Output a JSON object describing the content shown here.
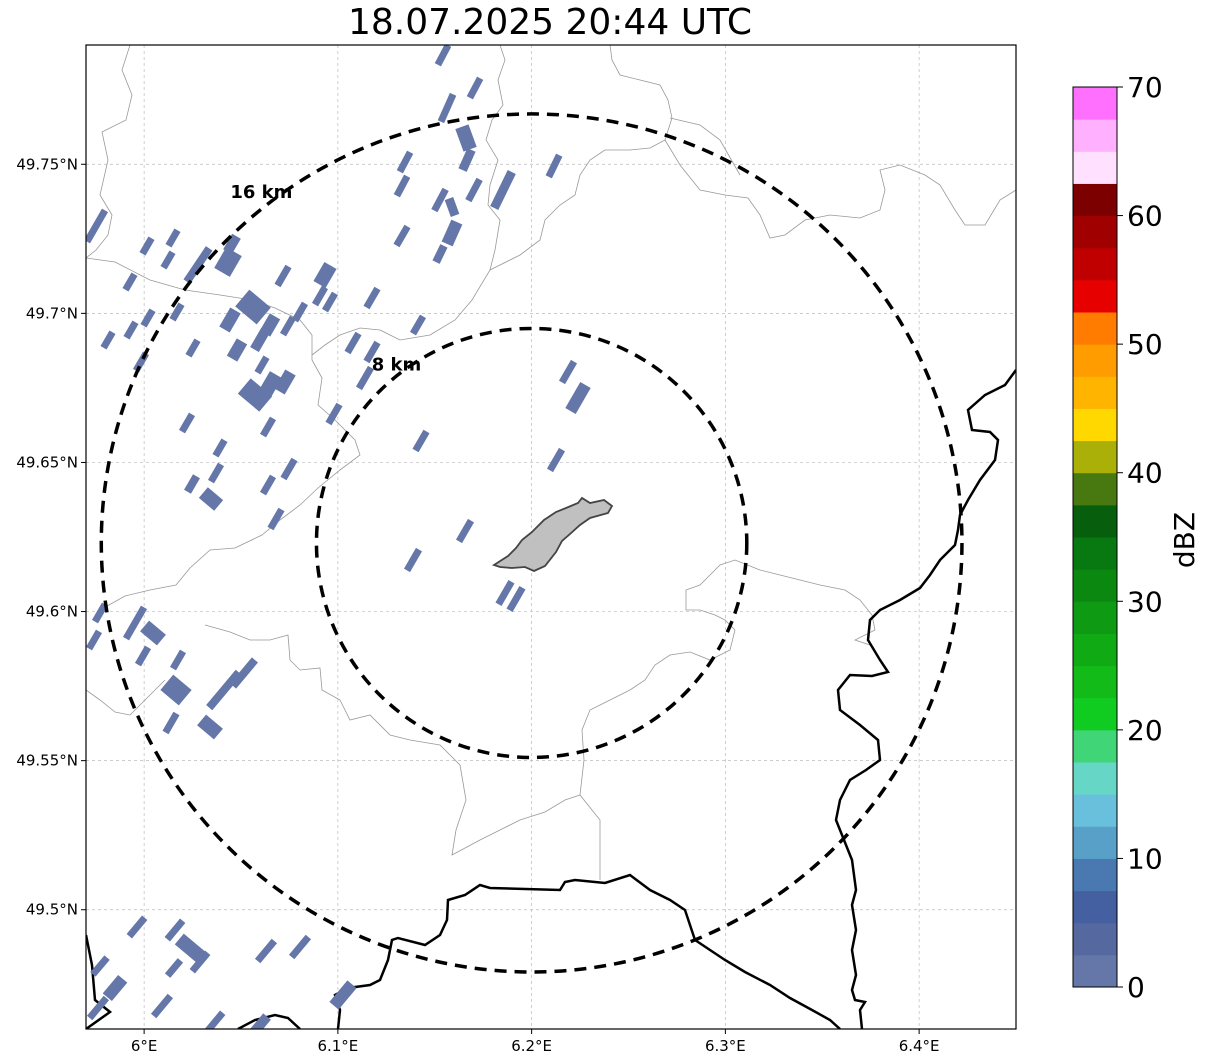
{
  "title": "18.07.2025 20:44 UTC",
  "map": {
    "lon_range": [
      5.97,
      6.45
    ],
    "lat_range": [
      49.46,
      49.79
    ],
    "x_ticks": [
      {
        "value": 6.0,
        "label": "6°E"
      },
      {
        "value": 6.1,
        "label": "6.1°E"
      },
      {
        "value": 6.2,
        "label": "6.2°E"
      },
      {
        "value": 6.3,
        "label": "6.3°E"
      },
      {
        "value": 6.4,
        "label": "6.4°E"
      }
    ],
    "y_ticks": [
      {
        "value": 49.5,
        "label": "49.5°N"
      },
      {
        "value": 49.55,
        "label": "49.55°N"
      },
      {
        "value": 49.6,
        "label": "49.6°N"
      },
      {
        "value": 49.65,
        "label": "49.65°N"
      },
      {
        "value": 49.7,
        "label": "49.7°N"
      },
      {
        "value": 49.75,
        "label": "49.75°N"
      }
    ],
    "grid": true,
    "center": {
      "lon": 6.2,
      "lat": 49.623
    },
    "rings": [
      {
        "radius_km": 8,
        "label": "8 km"
      },
      {
        "radius_km": 16,
        "label": "16 km"
      }
    ],
    "echo_color": "#6577a8"
  },
  "colorbar": {
    "label": "dBZ",
    "tick_labels": [
      "0",
      "10",
      "20",
      "30",
      "40",
      "50",
      "60",
      "70"
    ],
    "min": 0,
    "max": 70,
    "step": 2.5,
    "colors": [
      "#6577a8",
      "#5568a0",
      "#4560a0",
      "#4a78b0",
      "#58a0c8",
      "#68c0dc",
      "#66d6c6",
      "#40d678",
      "#10cc20",
      "#12bb18",
      "#0faa14",
      "#0e9a12",
      "#0b8810",
      "#087810",
      "#075f0e",
      "#487810",
      "#aab008",
      "#ffd800",
      "#ffb400",
      "#ff9c00",
      "#ff7c00",
      "#e60000",
      "#c00000",
      "#a00000",
      "#7c0000",
      "#ffe0ff",
      "#ffb0ff",
      "#ff70ff",
      "#f030f0"
    ]
  }
}
